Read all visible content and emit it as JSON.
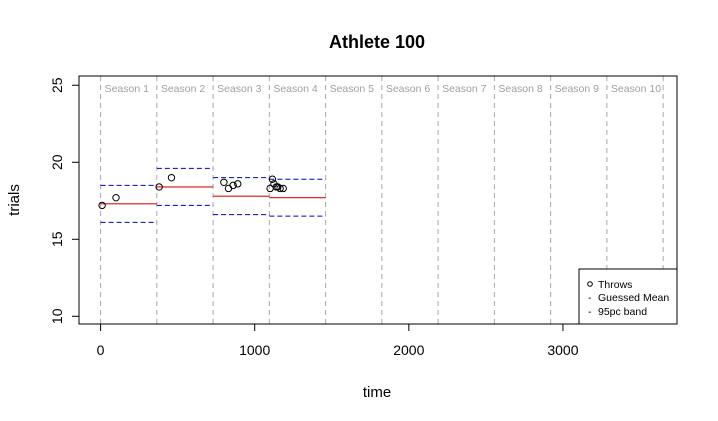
{
  "chart_data": {
    "type": "scatter",
    "title": "Athlete  100",
    "xlabel": "time",
    "ylabel": "trials",
    "xlim": [
      -140,
      3740
    ],
    "ylim": [
      9.5,
      25.6
    ],
    "x_ticks": [
      0,
      1000,
      2000,
      3000
    ],
    "y_ticks": [
      10,
      15,
      20,
      25
    ],
    "grid": false,
    "season_boundaries": [
      0,
      365,
      730,
      1095,
      1460,
      1825,
      2190,
      2555,
      2920,
      3285,
      3650
    ],
    "season_labels": [
      "Season 1",
      "Season 2",
      "Season 3",
      "Season 4",
      "Season 5",
      "Season 6",
      "Season 7",
      "Season 8",
      "Season 9",
      "Season 10"
    ],
    "throws": {
      "name": "Throws",
      "points": [
        {
          "x": 10,
          "y": 17.2
        },
        {
          "x": 100,
          "y": 17.7
        },
        {
          "x": 380,
          "y": 18.4
        },
        {
          "x": 460,
          "y": 19.0
        },
        {
          "x": 800,
          "y": 18.7
        },
        {
          "x": 830,
          "y": 18.3
        },
        {
          "x": 860,
          "y": 18.5
        },
        {
          "x": 890,
          "y": 18.6
        },
        {
          "x": 1100,
          "y": 18.3
        },
        {
          "x": 1115,
          "y": 18.9
        },
        {
          "x": 1125,
          "y": 18.6
        },
        {
          "x": 1140,
          "y": 18.4
        },
        {
          "x": 1150,
          "y": 18.4
        },
        {
          "x": 1165,
          "y": 18.3
        },
        {
          "x": 1185,
          "y": 18.3
        }
      ]
    },
    "guessed_mean": {
      "name": "Guessed Mean",
      "segments": [
        {
          "x0": 0,
          "x1": 365,
          "y": 17.3
        },
        {
          "x0": 365,
          "x1": 730,
          "y": 18.4
        },
        {
          "x0": 730,
          "x1": 1095,
          "y": 17.8
        },
        {
          "x0": 1095,
          "x1": 1460,
          "y": 17.7
        }
      ]
    },
    "band_95pc": {
      "name": "95pc band",
      "segments": [
        {
          "x0": 0,
          "x1": 365,
          "upper": 18.5,
          "lower": 16.1
        },
        {
          "x0": 365,
          "x1": 730,
          "upper": 19.6,
          "lower": 17.2
        },
        {
          "x0": 730,
          "x1": 1095,
          "upper": 19.0,
          "lower": 16.6
        },
        {
          "x0": 1095,
          "x1": 1460,
          "upper": 18.9,
          "lower": 16.5
        }
      ]
    },
    "legend": {
      "position": "bottom-right",
      "entries": [
        {
          "symbol": "o",
          "label": "Throws"
        },
        {
          "symbol": "-",
          "label": "Guessed Mean"
        },
        {
          "symbol": "-",
          "label": "95pc band"
        }
      ]
    },
    "colors": {
      "points": "#000000",
      "mean": "#e01010",
      "band": "#0000cc",
      "season_lines": "#a8a8a8",
      "season_text": "#a0a0a0"
    }
  }
}
